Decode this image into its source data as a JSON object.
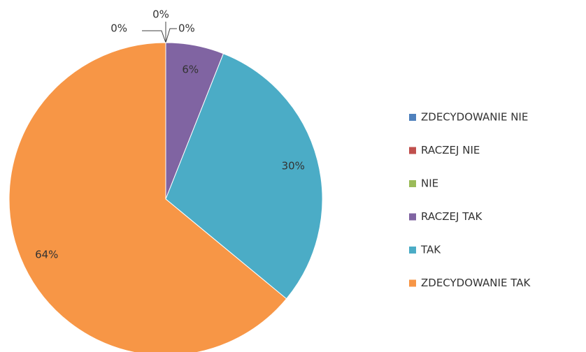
{
  "chart_data": {
    "type": "pie",
    "categories": [
      "ZDECYDOWANIE NIE",
      "RACZEJ NIE",
      "NIE",
      "RACZEJ TAK",
      "TAK",
      "ZDECYDOWANIE TAK"
    ],
    "values": [
      0,
      0,
      0,
      6,
      30,
      64
    ],
    "value_labels": [
      "0%",
      "0%",
      "0%",
      "6%",
      "30%",
      "64%"
    ],
    "colors": [
      "#4f81bd",
      "#c0504d",
      "#9bbb59",
      "#8064a2",
      "#4bacc6",
      "#f79646"
    ],
    "legend": "right"
  }
}
